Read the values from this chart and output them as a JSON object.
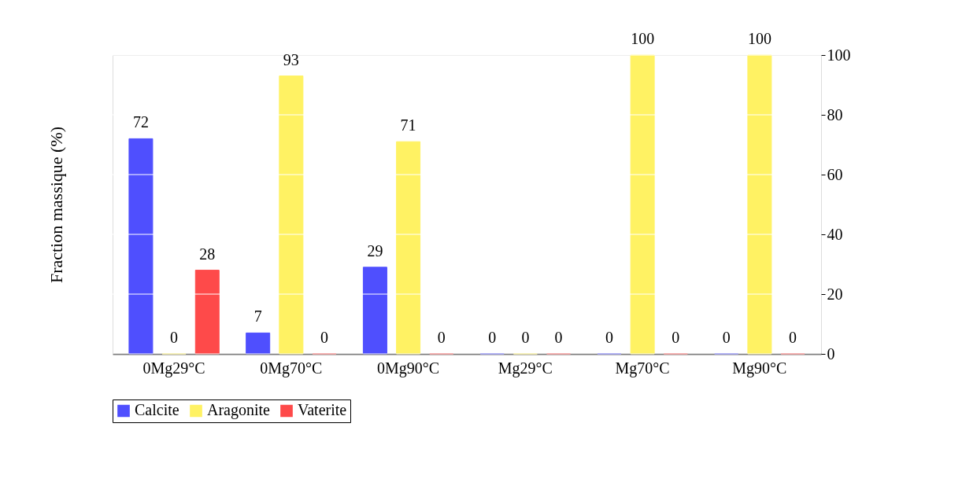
{
  "chart_data": {
    "type": "bar",
    "ylabel": "Fraction massique (%)",
    "categories": [
      "0Mg29°C",
      "0Mg70°C",
      "0Mg90°C",
      "Mg29°C",
      "Mg70°C",
      "Mg90°C"
    ],
    "series": [
      {
        "name": "Calcite",
        "color": "#4f4ffe",
        "values": [
          72,
          7,
          29,
          0,
          0,
          0
        ]
      },
      {
        "name": "Aragonite",
        "color": "#fff263",
        "values": [
          0,
          93,
          71,
          0,
          100,
          100
        ]
      },
      {
        "name": "Vaterite",
        "color": "#fe4a4a",
        "values": [
          28,
          0,
          0,
          0,
          0,
          0
        ]
      }
    ],
    "ylim": [
      0,
      100
    ],
    "yticks": [
      0,
      20,
      40,
      60,
      80,
      100
    ],
    "grid": "y",
    "data_labels": true,
    "legend": "bottom"
  }
}
